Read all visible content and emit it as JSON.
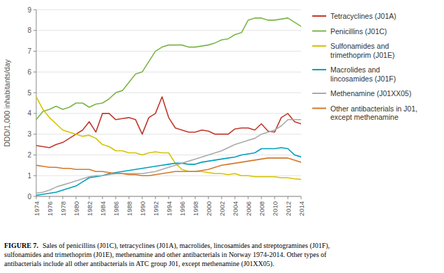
{
  "chart_data": {
    "type": "line",
    "y_label": "DDD/1,000 inhabitants/day",
    "x": [
      1974,
      1975,
      1976,
      1977,
      1978,
      1979,
      1980,
      1981,
      1982,
      1983,
      1984,
      1985,
      1986,
      1987,
      1988,
      1989,
      1990,
      1991,
      1992,
      1993,
      1994,
      1995,
      1996,
      1997,
      1998,
      1999,
      2000,
      2001,
      2002,
      2003,
      2004,
      2005,
      2006,
      2007,
      2008,
      2009,
      2010,
      2011,
      2012,
      2013,
      2014
    ],
    "series": [
      {
        "name": "Tetracyclines (J01A)",
        "color": "#c0392b",
        "values": [
          2.45,
          2.4,
          2.35,
          2.5,
          2.6,
          2.8,
          3.0,
          3.2,
          3.6,
          3.1,
          4.0,
          4.0,
          3.7,
          3.75,
          3.8,
          3.7,
          3.0,
          3.8,
          4.0,
          4.8,
          3.8,
          3.3,
          3.2,
          3.1,
          3.1,
          3.2,
          3.15,
          3.0,
          3.0,
          3.0,
          3.25,
          3.3,
          3.3,
          3.2,
          3.5,
          3.15,
          3.1,
          3.8,
          4.0,
          3.6,
          3.5
        ]
      },
      {
        "name": "Penicillins (J01C)",
        "color": "#7ab648",
        "values": [
          3.7,
          4.1,
          4.2,
          4.35,
          4.2,
          4.3,
          4.5,
          4.5,
          4.3,
          4.45,
          4.5,
          4.7,
          5.0,
          5.1,
          5.5,
          5.9,
          6.0,
          6.5,
          7.0,
          7.2,
          7.3,
          7.3,
          7.3,
          7.2,
          7.2,
          7.25,
          7.3,
          7.4,
          7.55,
          7.6,
          7.8,
          7.9,
          8.5,
          8.6,
          8.6,
          8.5,
          8.5,
          8.55,
          8.6,
          8.4,
          8.2
        ]
      },
      {
        "name": "Sulfonamides and\ntrimethoprim (J01E)",
        "color": "#d4c400",
        "values": [
          4.8,
          4.2,
          3.8,
          3.5,
          3.2,
          3.1,
          3.0,
          2.9,
          2.95,
          2.8,
          2.5,
          2.4,
          2.2,
          2.2,
          2.1,
          2.1,
          2.0,
          2.1,
          2.15,
          2.1,
          2.1,
          1.6,
          1.3,
          1.2,
          1.2,
          1.2,
          1.15,
          1.1,
          1.1,
          1.05,
          1.1,
          1.0,
          1.0,
          0.95,
          0.95,
          0.95,
          0.95,
          0.9,
          0.9,
          0.85,
          0.82
        ]
      },
      {
        "name": "Macrolides and\nlincosamides (J01F)",
        "color": "#00a0bb",
        "values": [
          0.05,
          0.1,
          0.15,
          0.2,
          0.3,
          0.4,
          0.5,
          0.7,
          0.9,
          0.95,
          1.0,
          1.1,
          1.15,
          1.2,
          1.25,
          1.3,
          1.35,
          1.4,
          1.45,
          1.5,
          1.55,
          1.6,
          1.6,
          1.55,
          1.55,
          1.65,
          1.7,
          1.75,
          1.8,
          1.85,
          1.9,
          2.0,
          2.05,
          2.1,
          2.3,
          2.3,
          2.3,
          2.35,
          2.3,
          2.0,
          1.9
        ]
      },
      {
        "name": "Methenamine (J01XX05)",
        "color": "#aaaaaa",
        "values": [
          0.15,
          0.2,
          0.3,
          0.45,
          0.55,
          0.65,
          0.75,
          0.85,
          0.95,
          1.0,
          1.0,
          1.05,
          1.1,
          1.1,
          1.1,
          1.1,
          1.1,
          1.15,
          1.2,
          1.3,
          1.4,
          1.5,
          1.6,
          1.7,
          1.8,
          1.9,
          2.0,
          2.1,
          2.2,
          2.35,
          2.5,
          2.6,
          2.7,
          2.8,
          3.0,
          3.1,
          3.2,
          3.4,
          3.7,
          3.7,
          3.7
        ]
      },
      {
        "name": "Other antibacterials in J01,\nexcept methenamine",
        "color": "#d4782a",
        "values": [
          1.5,
          1.45,
          1.4,
          1.4,
          1.35,
          1.35,
          1.3,
          1.3,
          1.3,
          1.2,
          1.2,
          1.15,
          1.1,
          1.1,
          1.05,
          1.05,
          1.0,
          1.0,
          1.05,
          1.1,
          1.15,
          1.2,
          1.2,
          1.2,
          1.2,
          1.25,
          1.3,
          1.4,
          1.5,
          1.55,
          1.6,
          1.65,
          1.7,
          1.75,
          1.8,
          1.85,
          1.85,
          1.85,
          1.85,
          1.75,
          1.65
        ]
      }
    ],
    "xlim": [
      1974,
      2014
    ],
    "xticks": [
      1974,
      1976,
      1978,
      1980,
      1982,
      1984,
      1986,
      1988,
      1990,
      1992,
      1994,
      1996,
      1998,
      2000,
      2002,
      2004,
      2006,
      2008,
      2010,
      2012,
      2014
    ],
    "ylim": [
      0,
      9
    ],
    "yticks": [
      0,
      1,
      2,
      3,
      4,
      5,
      6,
      7,
      8,
      9
    ],
    "grid": true,
    "legend": "right",
    "caption_bold": "FIGURE 7.",
    "caption": [
      "Sales of penicillins (J01C), tetracyclines (J01A), macrolides, lincosamides and streptogramines (J01F),",
      "sulfonamides and trimethoprim (J01E), methenamine and other antibacterials in Norway 1974-2014. Other types of",
      "antibacterials include all other antibacterials in ATC group J01, except methenamine (J01XX05)."
    ]
  }
}
